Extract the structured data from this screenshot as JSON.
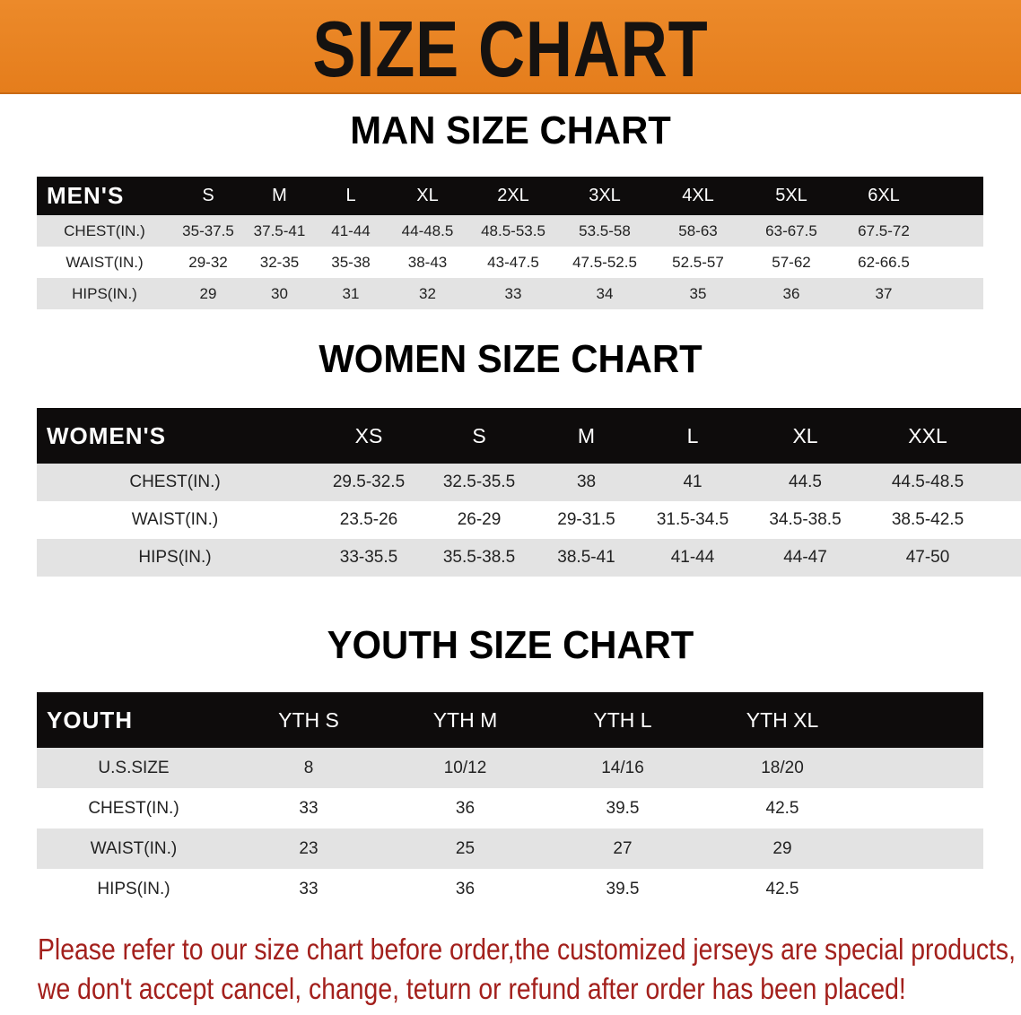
{
  "title": "SIZE CHART",
  "colors": {
    "banner": "#e8831f",
    "header_row": "#0e0c0c",
    "stripe": "#e3e3e3",
    "note": "#a3201c"
  },
  "men": {
    "section_title": "MAN SIZE CHART",
    "header": [
      "MEN'S",
      "S",
      "M",
      "L",
      "XL",
      "2XL",
      "3XL",
      "4XL",
      "5XL",
      "6XL"
    ],
    "rows": [
      [
        "CHEST(IN.)",
        "35-37.5",
        "37.5-41",
        "41-44",
        "44-48.5",
        "48.5-53.5",
        "53.5-58",
        "58-63",
        "63-67.5",
        "67.5-72"
      ],
      [
        "WAIST(IN.)",
        "29-32",
        "32-35",
        "35-38",
        "38-43",
        "43-47.5",
        "47.5-52.5",
        "52.5-57",
        "57-62",
        "62-66.5"
      ],
      [
        "HIPS(IN.)",
        "29",
        "30",
        "31",
        "32",
        "33",
        "34",
        "35",
        "36",
        "37"
      ]
    ]
  },
  "women": {
    "section_title": "WOMEN SIZE CHART",
    "header": [
      "WOMEN'S",
      "XS",
      "S",
      "M",
      "L",
      "XL",
      "XXL"
    ],
    "rows": [
      [
        "CHEST(IN.)",
        "29.5-32.5",
        "32.5-35.5",
        "38",
        "41",
        "44.5",
        "44.5-48.5"
      ],
      [
        "WAIST(IN.)",
        "23.5-26",
        "26-29",
        "29-31.5",
        "31.5-34.5",
        "34.5-38.5",
        "38.5-42.5"
      ],
      [
        "HIPS(IN.)",
        "33-35.5",
        "35.5-38.5",
        "38.5-41",
        "41-44",
        "44-47",
        "47-50"
      ]
    ]
  },
  "youth": {
    "section_title": "YOUTH SIZE CHART",
    "header": [
      "YOUTH",
      "YTH S",
      "YTH M",
      "YTH L",
      "YTH XL"
    ],
    "rows": [
      [
        "U.S.SIZE",
        "8",
        "10/12",
        "14/16",
        "18/20"
      ],
      [
        "CHEST(IN.)",
        "33",
        "36",
        "39.5",
        "42.5"
      ],
      [
        "WAIST(IN.)",
        "23",
        "25",
        "27",
        "29"
      ],
      [
        "HIPS(IN.)",
        "33",
        "36",
        "39.5",
        "42.5"
      ]
    ]
  },
  "note": {
    "line1": "Please refer to our size chart before order,the customized jerseys are special products,",
    "line2": "we don't accept cancel, change, teturn or refund after order has been placed!"
  }
}
